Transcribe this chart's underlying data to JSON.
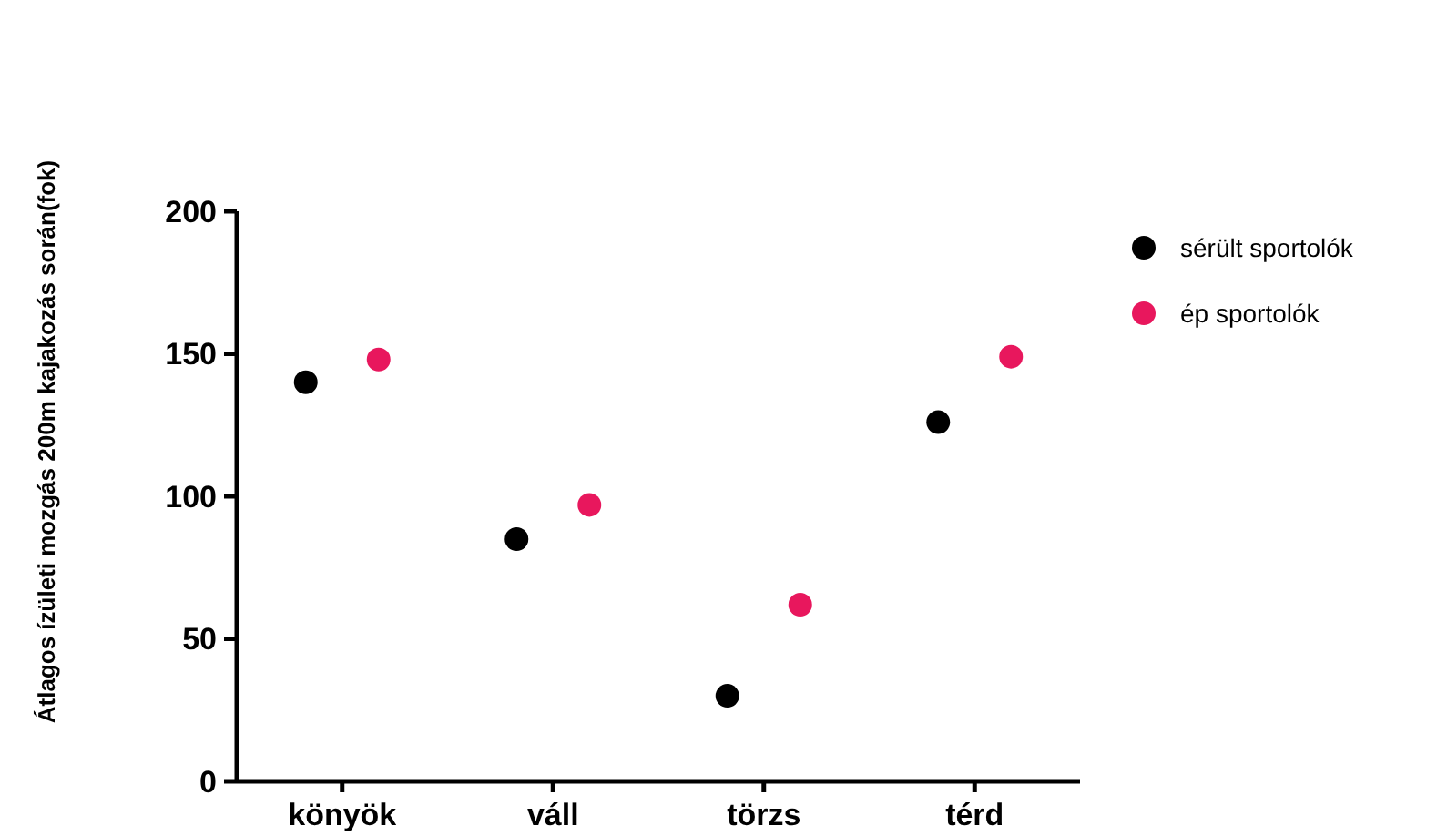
{
  "chart_data": {
    "type": "scatter",
    "ylabel": "Átlagos ízületi mozgás 200m kajakozás során(fok)",
    "categories": [
      "könyök",
      "váll",
      "törzs",
      "térd"
    ],
    "series": [
      {
        "name": "sérült sportolók",
        "color": "#000000",
        "values": [
          140,
          85,
          30,
          126
        ]
      },
      {
        "name": "ép sportolók",
        "color": "#e8175d",
        "values": [
          148,
          97,
          62,
          149
        ]
      }
    ],
    "ylim": [
      0,
      200
    ],
    "yticks": [
      0,
      50,
      100,
      150,
      200
    ],
    "grid": false,
    "legend": "right",
    "marker": "circle"
  }
}
